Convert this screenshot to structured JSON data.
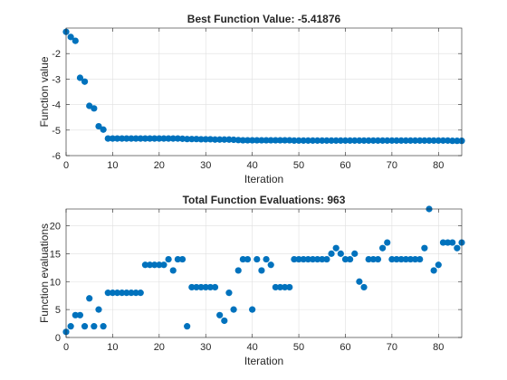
{
  "chart_data": [
    {
      "type": "scatter",
      "title": "Best Function Value: -5.41876",
      "xlabel": "Iteration",
      "ylabel": "Function value",
      "xlim": [
        0,
        85
      ],
      "ylim": [
        -6,
        -1
      ],
      "xticks": [
        0,
        10,
        20,
        30,
        40,
        50,
        60,
        70,
        80
      ],
      "yticks": [
        -6,
        -5,
        -4,
        -3,
        -2
      ],
      "grid": true,
      "marker_color": "#0072BD",
      "x": [
        0,
        1,
        2,
        3,
        4,
        5,
        6,
        7,
        8,
        9,
        10,
        11,
        12,
        13,
        14,
        15,
        16,
        17,
        18,
        19,
        20,
        21,
        22,
        23,
        24,
        25,
        26,
        27,
        28,
        29,
        30,
        31,
        32,
        33,
        34,
        35,
        36,
        37,
        38,
        39,
        40,
        41,
        42,
        43,
        44,
        45,
        46,
        47,
        48,
        49,
        50,
        51,
        52,
        53,
        54,
        55,
        56,
        57,
        58,
        59,
        60,
        61,
        62,
        63,
        64,
        65,
        66,
        67,
        68,
        69,
        70,
        71,
        72,
        73,
        74,
        75,
        76,
        77,
        78,
        79,
        80,
        81,
        82,
        83,
        84,
        85
      ],
      "y": [
        -1.15,
        -1.35,
        -1.5,
        -2.95,
        -3.1,
        -4.05,
        -4.15,
        -4.85,
        -4.98,
        -5.33,
        -5.33,
        -5.33,
        -5.33,
        -5.33,
        -5.33,
        -5.33,
        -5.33,
        -5.33,
        -5.33,
        -5.33,
        -5.33,
        -5.33,
        -5.33,
        -5.33,
        -5.33,
        -5.34,
        -5.35,
        -5.35,
        -5.35,
        -5.36,
        -5.36,
        -5.36,
        -5.37,
        -5.37,
        -5.37,
        -5.37,
        -5.38,
        -5.39,
        -5.4,
        -5.4,
        -5.4,
        -5.4,
        -5.4,
        -5.4,
        -5.4,
        -5.4,
        -5.4,
        -5.4,
        -5.4,
        -5.41,
        -5.41,
        -5.41,
        -5.41,
        -5.41,
        -5.41,
        -5.41,
        -5.41,
        -5.41,
        -5.41,
        -5.41,
        -5.41,
        -5.41,
        -5.41,
        -5.41,
        -5.41,
        -5.41,
        -5.41,
        -5.41,
        -5.41,
        -5.41,
        -5.41,
        -5.41,
        -5.41,
        -5.41,
        -5.41,
        -5.41,
        -5.41,
        -5.41,
        -5.41,
        -5.41,
        -5.41,
        -5.41,
        -5.41,
        -5.42,
        -5.42,
        -5.42
      ]
    },
    {
      "type": "scatter",
      "title": "Total Function Evaluations: 963",
      "xlabel": "Iteration",
      "ylabel": "Function evaluations",
      "xlim": [
        0,
        85
      ],
      "ylim": [
        0,
        23
      ],
      "xticks": [
        0,
        10,
        20,
        30,
        40,
        50,
        60,
        70,
        80
      ],
      "yticks": [
        0,
        5,
        10,
        15,
        20
      ],
      "grid": true,
      "marker_color": "#0072BD",
      "x": [
        0,
        1,
        2,
        3,
        4,
        5,
        6,
        7,
        8,
        9,
        10,
        11,
        12,
        13,
        14,
        15,
        16,
        17,
        18,
        19,
        20,
        21,
        22,
        23,
        24,
        25,
        26,
        27,
        28,
        29,
        30,
        31,
        32,
        33,
        34,
        35,
        36,
        37,
        38,
        39,
        40,
        41,
        42,
        43,
        44,
        45,
        46,
        47,
        48,
        49,
        50,
        51,
        52,
        53,
        54,
        55,
        56,
        57,
        58,
        59,
        60,
        61,
        62,
        63,
        64,
        65,
        66,
        67,
        68,
        69,
        70,
        71,
        72,
        73,
        74,
        75,
        76,
        77,
        78,
        79,
        80,
        81,
        82,
        83,
        84,
        85
      ],
      "y": [
        1,
        2,
        4,
        4,
        2,
        7,
        2,
        5,
        2,
        8,
        8,
        8,
        8,
        8,
        8,
        8,
        8,
        13,
        13,
        13,
        13,
        13,
        14,
        12,
        14,
        14,
        2,
        9,
        9,
        9,
        9,
        9,
        9,
        4,
        3,
        8,
        5,
        12,
        14,
        14,
        5,
        14,
        12,
        14,
        13,
        9,
        9,
        9,
        9,
        14,
        14,
        14,
        14,
        14,
        14,
        14,
        14,
        15,
        16,
        15,
        14,
        14,
        15,
        10,
        9,
        14,
        14,
        14,
        16,
        17,
        14,
        14,
        14,
        14,
        14,
        14,
        14,
        16,
        23,
        12,
        13,
        17,
        17,
        17,
        16,
        17
      ]
    }
  ]
}
